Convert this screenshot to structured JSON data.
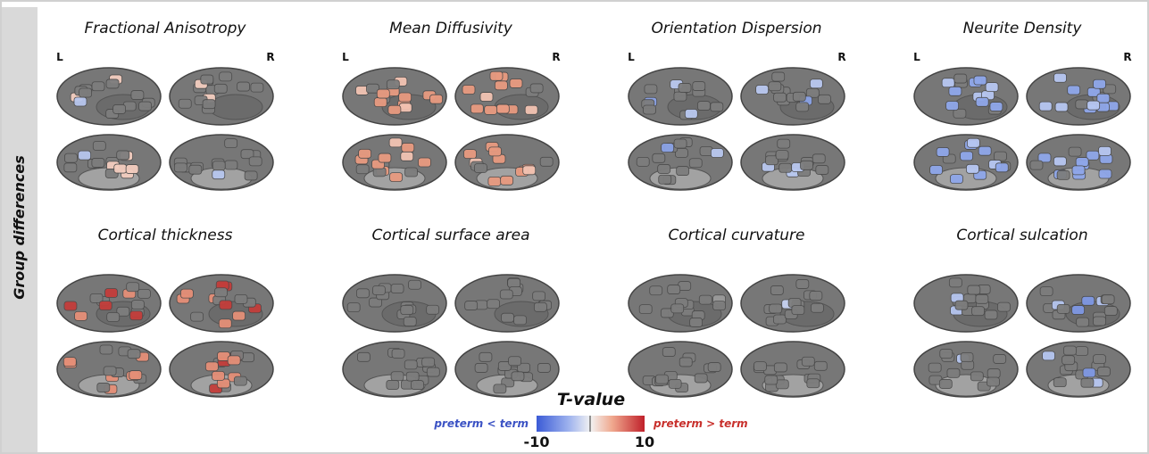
{
  "side_label": "Group differences",
  "panels": [
    {
      "title": "Fractional Anisotropy",
      "left": "L",
      "right": "R"
    },
    {
      "title": "Mean Diffusivity",
      "left": "L",
      "right": "R"
    },
    {
      "title": "Orientation Dispersion",
      "left": "L",
      "right": "R"
    },
    {
      "title": "Neurite Density",
      "left": "L",
      "right": "R"
    },
    {
      "title": "Cortical thickness"
    },
    {
      "title": "Cortical surface area"
    },
    {
      "title": "Cortical curvature"
    },
    {
      "title": "Cortical sulcation"
    }
  ],
  "colorbar": {
    "title": "T-value",
    "min": "-10",
    "max": "10",
    "low_label": "preterm < term",
    "high_label": "preterm > term"
  }
}
